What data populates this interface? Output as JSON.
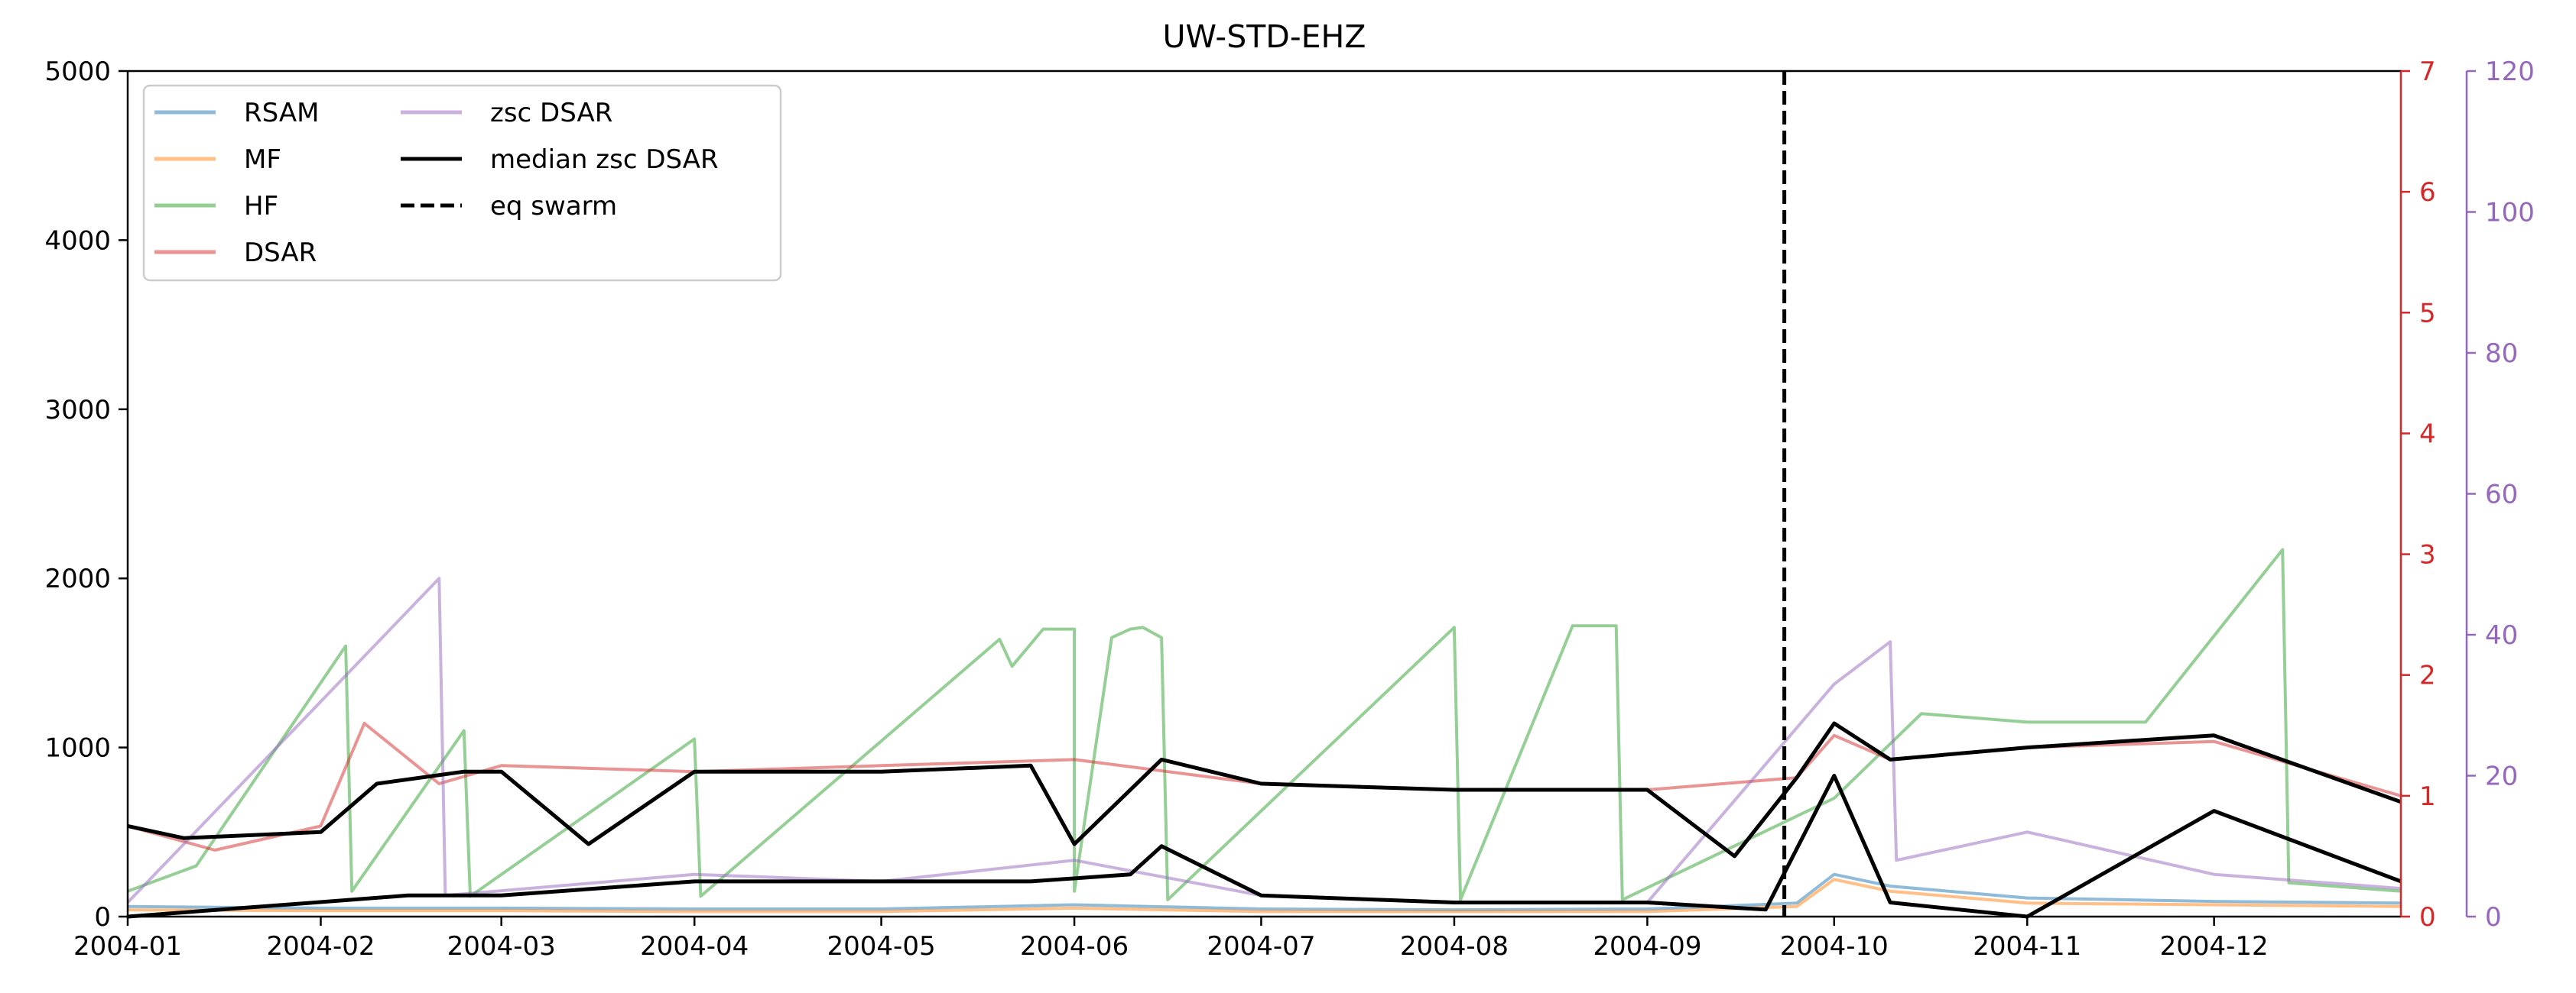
{
  "chart_data": {
    "type": "line",
    "title": "UW-STD-EHZ",
    "x_range": [
      "2004-01-01",
      "2004-12-31"
    ],
    "x_ticks": [
      "2004-01",
      "2004-02",
      "2004-03",
      "2004-04",
      "2004-05",
      "2004-06",
      "2004-07",
      "2004-08",
      "2004-09",
      "2004-10",
      "2004-11",
      "2004-12"
    ],
    "axes": {
      "left": {
        "ylim": [
          0,
          5000
        ],
        "ticks": [
          0,
          1000,
          2000,
          3000,
          4000,
          5000
        ],
        "color": "#000000"
      },
      "right1": {
        "ylim": [
          0,
          7
        ],
        "ticks": [
          0,
          1,
          2,
          3,
          4,
          5,
          6,
          7
        ],
        "color": "#d62728"
      },
      "right2": {
        "ylim": [
          0,
          120
        ],
        "ticks": [
          0,
          20,
          40,
          60,
          80,
          100,
          120
        ],
        "color": "#9467bd"
      }
    },
    "grid": false,
    "legend": {
      "location": "upper-left",
      "columns": 2
    },
    "series": [
      {
        "name": "RSAM",
        "axis": "left",
        "color": "#1f77b4",
        "alpha": 0.5,
        "style": "solid",
        "points": [
          [
            "2004-01-01",
            60
          ],
          [
            "2004-02-01",
            50
          ],
          [
            "2004-03-01",
            50
          ],
          [
            "2004-04-01",
            45
          ],
          [
            "2004-05-01",
            45
          ],
          [
            "2004-06-01",
            70
          ],
          [
            "2004-07-01",
            45
          ],
          [
            "2004-08-01",
            40
          ],
          [
            "2004-09-01",
            45
          ],
          [
            "2004-09-25",
            80
          ],
          [
            "2004-10-01",
            250
          ],
          [
            "2004-10-10",
            180
          ],
          [
            "2004-11-01",
            110
          ],
          [
            "2004-12-01",
            90
          ],
          [
            "2004-12-31",
            80
          ]
        ]
      },
      {
        "name": "MF",
        "axis": "left",
        "color": "#ff7f0e",
        "alpha": 0.5,
        "style": "solid",
        "points": [
          [
            "2004-01-01",
            40
          ],
          [
            "2004-02-01",
            35
          ],
          [
            "2004-03-01",
            35
          ],
          [
            "2004-04-01",
            30
          ],
          [
            "2004-05-01",
            30
          ],
          [
            "2004-06-01",
            50
          ],
          [
            "2004-07-01",
            30
          ],
          [
            "2004-08-01",
            30
          ],
          [
            "2004-09-01",
            30
          ],
          [
            "2004-09-25",
            60
          ],
          [
            "2004-10-01",
            220
          ],
          [
            "2004-10-10",
            150
          ],
          [
            "2004-11-01",
            80
          ],
          [
            "2004-12-01",
            70
          ],
          [
            "2004-12-31",
            60
          ]
        ]
      },
      {
        "name": "HF",
        "axis": "left",
        "color": "#2ca02c",
        "alpha": 0.5,
        "style": "solid",
        "points": [
          [
            "2004-01-01",
            150
          ],
          [
            "2004-01-12",
            300
          ],
          [
            "2004-02-05",
            1600
          ],
          [
            "2004-02-06",
            150
          ],
          [
            "2004-02-24",
            1100
          ],
          [
            "2004-02-25",
            120
          ],
          [
            "2004-04-01",
            1050
          ],
          [
            "2004-04-02",
            120
          ],
          [
            "2004-05-20",
            1640
          ],
          [
            "2004-05-22",
            1480
          ],
          [
            "2004-05-27",
            1700
          ],
          [
            "2004-06-01",
            1700
          ],
          [
            "2004-06-01",
            150
          ],
          [
            "2004-06-07",
            1650
          ],
          [
            "2004-06-10",
            1700
          ],
          [
            "2004-06-12",
            1710
          ],
          [
            "2004-06-15",
            1650
          ],
          [
            "2004-06-16",
            100
          ],
          [
            "2004-08-01",
            1710
          ],
          [
            "2004-08-02",
            100
          ],
          [
            "2004-08-20",
            1720
          ],
          [
            "2004-08-27",
            1720
          ],
          [
            "2004-08-28",
            100
          ],
          [
            "2004-10-01",
            700
          ],
          [
            "2004-10-15",
            1200
          ],
          [
            "2004-11-01",
            1150
          ],
          [
            "2004-11-20",
            1150
          ],
          [
            "2004-12-12",
            2170
          ],
          [
            "2004-12-13",
            200
          ],
          [
            "2004-12-31",
            150
          ]
        ]
      },
      {
        "name": "DSAR",
        "axis": "right1",
        "color": "#d62728",
        "alpha": 0.5,
        "style": "solid",
        "points": [
          [
            "2004-01-01",
            0.75
          ],
          [
            "2004-01-15",
            0.55
          ],
          [
            "2004-02-01",
            0.75
          ],
          [
            "2004-02-08",
            1.6
          ],
          [
            "2004-02-20",
            1.1
          ],
          [
            "2004-03-01",
            1.25
          ],
          [
            "2004-04-01",
            1.2
          ],
          [
            "2004-05-01",
            1.25
          ],
          [
            "2004-06-01",
            1.3
          ],
          [
            "2004-07-01",
            1.1
          ],
          [
            "2004-08-01",
            1.05
          ],
          [
            "2004-09-01",
            1.05
          ],
          [
            "2004-09-25",
            1.15
          ],
          [
            "2004-10-01",
            1.5
          ],
          [
            "2004-10-10",
            1.3
          ],
          [
            "2004-11-01",
            1.4
          ],
          [
            "2004-12-01",
            1.45
          ],
          [
            "2004-12-31",
            1.0
          ]
        ]
      },
      {
        "name": "zsc DSAR",
        "axis": "right2",
        "color": "#9467bd",
        "alpha": 0.5,
        "style": "solid",
        "points": [
          [
            "2004-01-01",
            2
          ],
          [
            "2004-02-20",
            48
          ],
          [
            "2004-02-21",
            3
          ],
          [
            "2004-04-01",
            6
          ],
          [
            "2004-05-01",
            5
          ],
          [
            "2004-06-01",
            8
          ],
          [
            "2004-07-01",
            3
          ],
          [
            "2004-08-01",
            2
          ],
          [
            "2004-09-01",
            2
          ],
          [
            "2004-10-01",
            33
          ],
          [
            "2004-10-10",
            39
          ],
          [
            "2004-10-11",
            8
          ],
          [
            "2004-11-01",
            12
          ],
          [
            "2004-12-01",
            6
          ],
          [
            "2004-12-31",
            4
          ]
        ]
      },
      {
        "name": "median zsc DSAR",
        "axis": "right1",
        "color": "#000000",
        "alpha": 1.0,
        "style": "solid",
        "points": [
          [
            "2004-01-01",
            0.75
          ],
          [
            "2004-01-10",
            0.65
          ],
          [
            "2004-02-01",
            0.7
          ],
          [
            "2004-02-10",
            1.1
          ],
          [
            "2004-02-24",
            1.2
          ],
          [
            "2004-03-01",
            1.2
          ],
          [
            "2004-03-15",
            0.6
          ],
          [
            "2004-04-01",
            1.2
          ],
          [
            "2004-05-01",
            1.2
          ],
          [
            "2004-05-25",
            1.25
          ],
          [
            "2004-06-01",
            0.6
          ],
          [
            "2004-06-15",
            1.3
          ],
          [
            "2004-07-01",
            1.1
          ],
          [
            "2004-08-01",
            1.05
          ],
          [
            "2004-09-01",
            1.05
          ],
          [
            "2004-09-15",
            0.5
          ],
          [
            "2004-09-25",
            1.15
          ],
          [
            "2004-10-01",
            1.6
          ],
          [
            "2004-10-10",
            1.3
          ],
          [
            "2004-11-01",
            1.4
          ],
          [
            "2004-12-01",
            1.5
          ],
          [
            "2004-12-31",
            0.95
          ]
        ]
      },
      {
        "name": "median zsc DSAR",
        "axis": "right2",
        "color": "#000000",
        "alpha": 1.0,
        "style": "solid",
        "legend": false,
        "points": [
          [
            "2004-01-01",
            0
          ],
          [
            "2004-02-15",
            3
          ],
          [
            "2004-03-01",
            3
          ],
          [
            "2004-04-01",
            5
          ],
          [
            "2004-05-01",
            5
          ],
          [
            "2004-05-25",
            5
          ],
          [
            "2004-06-10",
            6
          ],
          [
            "2004-06-15",
            10
          ],
          [
            "2004-07-01",
            3
          ],
          [
            "2004-08-01",
            2
          ],
          [
            "2004-09-01",
            2
          ],
          [
            "2004-09-20",
            1
          ],
          [
            "2004-10-01",
            20
          ],
          [
            "2004-10-10",
            2
          ],
          [
            "2004-11-01",
            0
          ],
          [
            "2004-12-01",
            15
          ],
          [
            "2004-12-31",
            5
          ]
        ]
      },
      {
        "name": "eq swarm",
        "axis": "left",
        "color": "#000000",
        "style": "dashed",
        "type": "vline",
        "x": "2004-09-23"
      }
    ]
  }
}
